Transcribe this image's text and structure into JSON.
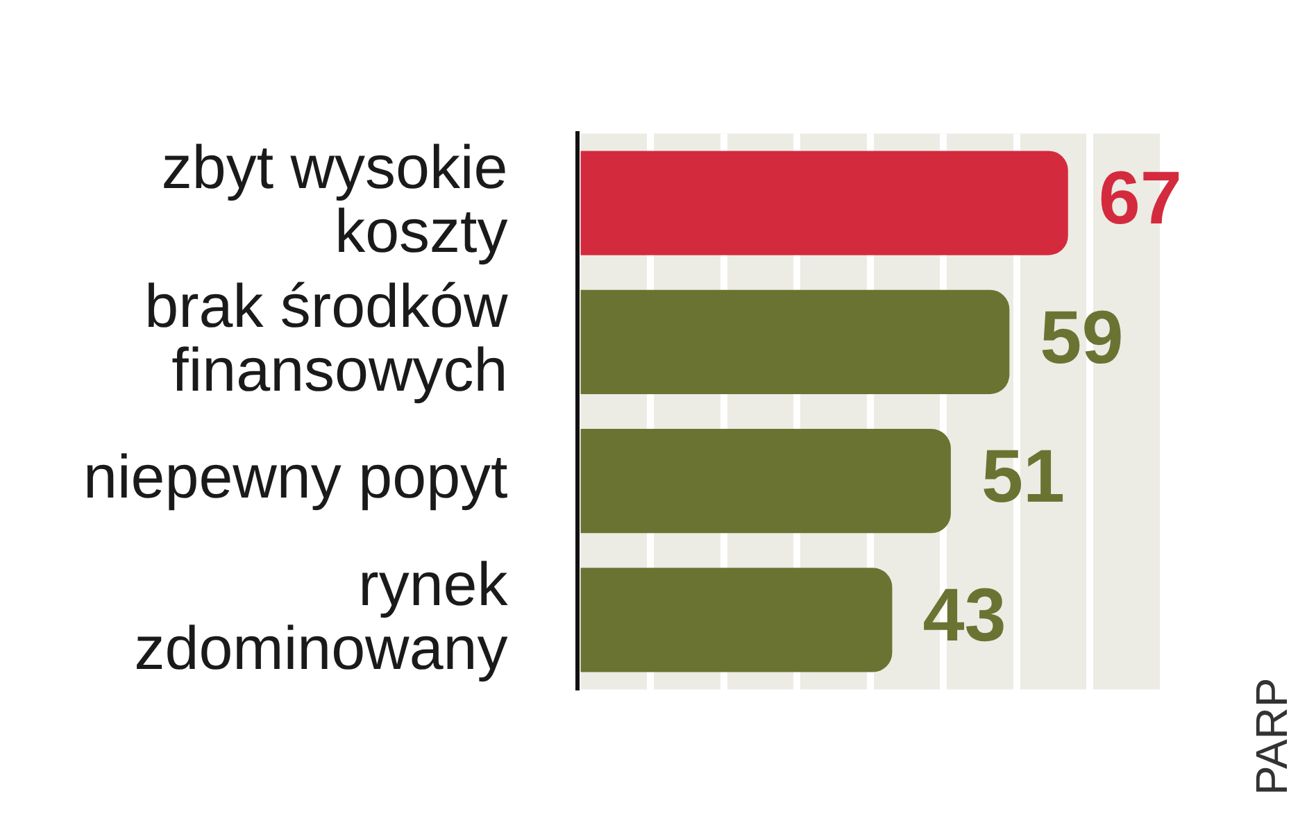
{
  "chart_data": {
    "type": "bar",
    "orientation": "horizontal",
    "categories": [
      "zbyt wysokie koszty",
      "brak środków finansowych",
      "niepewny popyt",
      "rynek zdominowany"
    ],
    "values": [
      67,
      59,
      51,
      43
    ],
    "colors": [
      "#d42a3e",
      "#6b7332",
      "#6b7332",
      "#6b7332"
    ],
    "xlim": [
      0,
      80
    ],
    "grid": "x",
    "tick_labels": "y",
    "data_labels": true,
    "annotations": [
      "PARP"
    ]
  }
}
